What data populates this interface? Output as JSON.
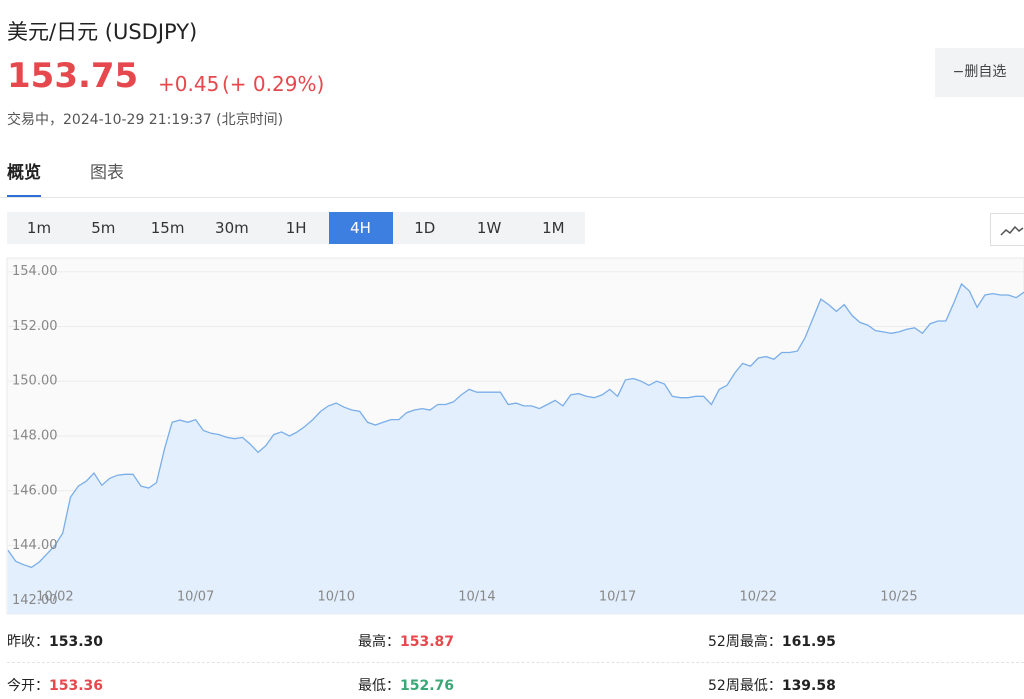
{
  "header": {
    "title": "美元/日元 (USDJPY)",
    "price": "153.75",
    "change": "+0.45",
    "change_pct": "(+ 0.29%)",
    "status": "交易中，2024-10-29 21:19:37 (北京时间)",
    "button": "−删自选",
    "up_color": "#e5484d"
  },
  "tabs": [
    "概览",
    "图表"
  ],
  "active_tab": 0,
  "intervals": [
    "1m",
    "5m",
    "15m",
    "30m",
    "1H",
    "4H",
    "1D",
    "1W",
    "1M"
  ],
  "active_interval": 5,
  "chart_data": {
    "type": "line",
    "grid": true,
    "line_color": "#7aaee8",
    "fill_color": "#e3effd",
    "xlim": [
      0,
      130
    ],
    "xticks": [
      {
        "value": 6,
        "label": "10/02"
      },
      {
        "value": 24,
        "label": "10/07"
      },
      {
        "value": 42,
        "label": "10/10"
      },
      {
        "value": 60,
        "label": "10/14"
      },
      {
        "value": 78,
        "label": "10/17"
      },
      {
        "value": 96,
        "label": "10/22"
      },
      {
        "value": 114,
        "label": "10/25"
      }
    ],
    "ylim": [
      141.5,
      154.5
    ],
    "yticks": [
      {
        "value": 142,
        "label": "142.00"
      },
      {
        "value": 144,
        "label": "144.00"
      },
      {
        "value": 146,
        "label": "146.00"
      },
      {
        "value": 148,
        "label": "148.00"
      },
      {
        "value": 150,
        "label": "150.00"
      },
      {
        "value": 152,
        "label": "152.00"
      },
      {
        "value": 154,
        "label": "154.00"
      }
    ],
    "x": [
      0,
      1,
      2,
      3,
      4,
      5,
      6,
      7,
      8,
      9,
      10,
      11,
      12,
      13,
      14,
      15,
      16,
      17,
      18,
      19,
      20,
      21,
      22,
      23,
      24,
      25,
      26,
      27,
      28,
      29,
      30,
      31,
      32,
      33,
      34,
      35,
      36,
      37,
      38,
      39,
      40,
      41,
      42,
      43,
      44,
      45,
      46,
      47,
      48,
      49,
      50,
      51,
      52,
      53,
      54,
      55,
      56,
      57,
      58,
      59,
      60,
      61,
      62,
      63,
      64,
      65,
      66,
      67,
      68,
      69,
      70,
      71,
      72,
      73,
      74,
      75,
      76,
      77,
      78,
      79,
      80,
      81,
      82,
      83,
      84,
      85,
      86,
      87,
      88,
      89,
      90,
      91,
      92,
      93,
      94,
      95,
      96,
      97,
      98,
      99,
      100,
      101,
      102,
      103,
      104,
      105,
      106,
      107,
      108,
      109,
      110,
      111,
      112,
      113,
      114,
      115,
      116,
      117,
      118,
      119,
      120,
      121,
      122,
      123,
      124,
      125,
      126,
      127,
      128,
      129,
      130
    ],
    "values": [
      143.83,
      143.42,
      143.3,
      143.2,
      143.4,
      143.7,
      144.0,
      144.45,
      145.77,
      146.17,
      146.35,
      146.65,
      146.2,
      146.45,
      146.57,
      146.6,
      146.6,
      146.17,
      146.1,
      146.3,
      147.5,
      148.5,
      148.58,
      148.5,
      148.6,
      148.2,
      148.1,
      148.05,
      147.95,
      147.9,
      147.95,
      147.7,
      147.4,
      147.65,
      148.05,
      148.15,
      148.0,
      148.15,
      148.35,
      148.6,
      148.9,
      149.1,
      149.2,
      149.05,
      148.95,
      148.9,
      148.5,
      148.4,
      148.5,
      148.6,
      148.6,
      148.85,
      148.95,
      149.0,
      148.95,
      149.15,
      149.15,
      149.25,
      149.5,
      149.7,
      149.6,
      149.6,
      149.6,
      149.6,
      149.15,
      149.2,
      149.1,
      149.1,
      149.0,
      149.15,
      149.3,
      149.1,
      149.5,
      149.55,
      149.45,
      149.4,
      149.5,
      149.7,
      149.45,
      150.05,
      150.1,
      150.0,
      149.85,
      150.0,
      149.9,
      149.45,
      149.4,
      149.4,
      149.45,
      149.45,
      149.15,
      149.7,
      149.85,
      150.3,
      150.65,
      150.55,
      150.85,
      150.9,
      150.8,
      151.05,
      151.05,
      151.1,
      151.6,
      152.3,
      153.0,
      152.8,
      152.55,
      152.8,
      152.4,
      152.15,
      152.05,
      151.85,
      151.8,
      151.75,
      151.8,
      151.9,
      151.95,
      151.75,
      152.1,
      152.2,
      152.2,
      152.85,
      153.55,
      153.3,
      152.7,
      153.15,
      153.2,
      153.15,
      153.15,
      153.05,
      153.25
    ]
  },
  "stats": [
    [
      {
        "label": "昨收：",
        "value": "153.30",
        "color": "#222222"
      },
      {
        "label": "最高：",
        "value": "153.87",
        "color": "#e5484d"
      },
      {
        "label": "52周最高：",
        "value": "161.95",
        "color": "#222222"
      }
    ],
    [
      {
        "label": "今开：",
        "value": "153.36",
        "color": "#e5484d"
      },
      {
        "label": "最低：",
        "value": "152.76",
        "color": "#3aa776"
      },
      {
        "label": "52周最低：",
        "value": "139.58",
        "color": "#222222"
      }
    ]
  ]
}
